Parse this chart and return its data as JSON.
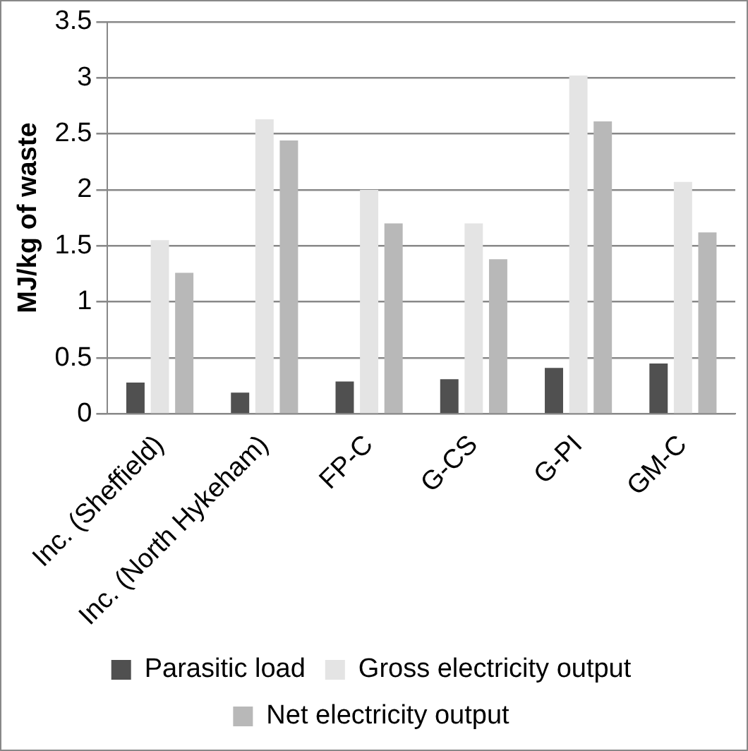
{
  "chart_data": {
    "type": "bar",
    "ylabel": "MJ/kg of waste",
    "categories": [
      "Inc. (Sheffield)",
      "Inc. (North Hykeham)",
      "FP-C",
      "G-CS",
      "G-PI",
      "GM-C"
    ],
    "series": [
      {
        "name": "Parasitic load",
        "color": "#505050",
        "values": [
          0.28,
          0.19,
          0.29,
          0.31,
          0.41,
          0.45
        ]
      },
      {
        "name": "Gross electricity output",
        "color": "#e4e4e4",
        "values": [
          1.55,
          2.63,
          2.0,
          1.7,
          3.02,
          2.07
        ]
      },
      {
        "name": "Net electricity output",
        "color": "#b8b8b8",
        "values": [
          1.26,
          2.44,
          1.7,
          1.38,
          2.61,
          1.62
        ]
      }
    ],
    "ylim": [
      0,
      3.5
    ],
    "yticks": [
      0,
      0.5,
      1,
      1.5,
      2,
      2.5,
      3,
      3.5
    ],
    "grid": "y",
    "legend": "bottom"
  }
}
